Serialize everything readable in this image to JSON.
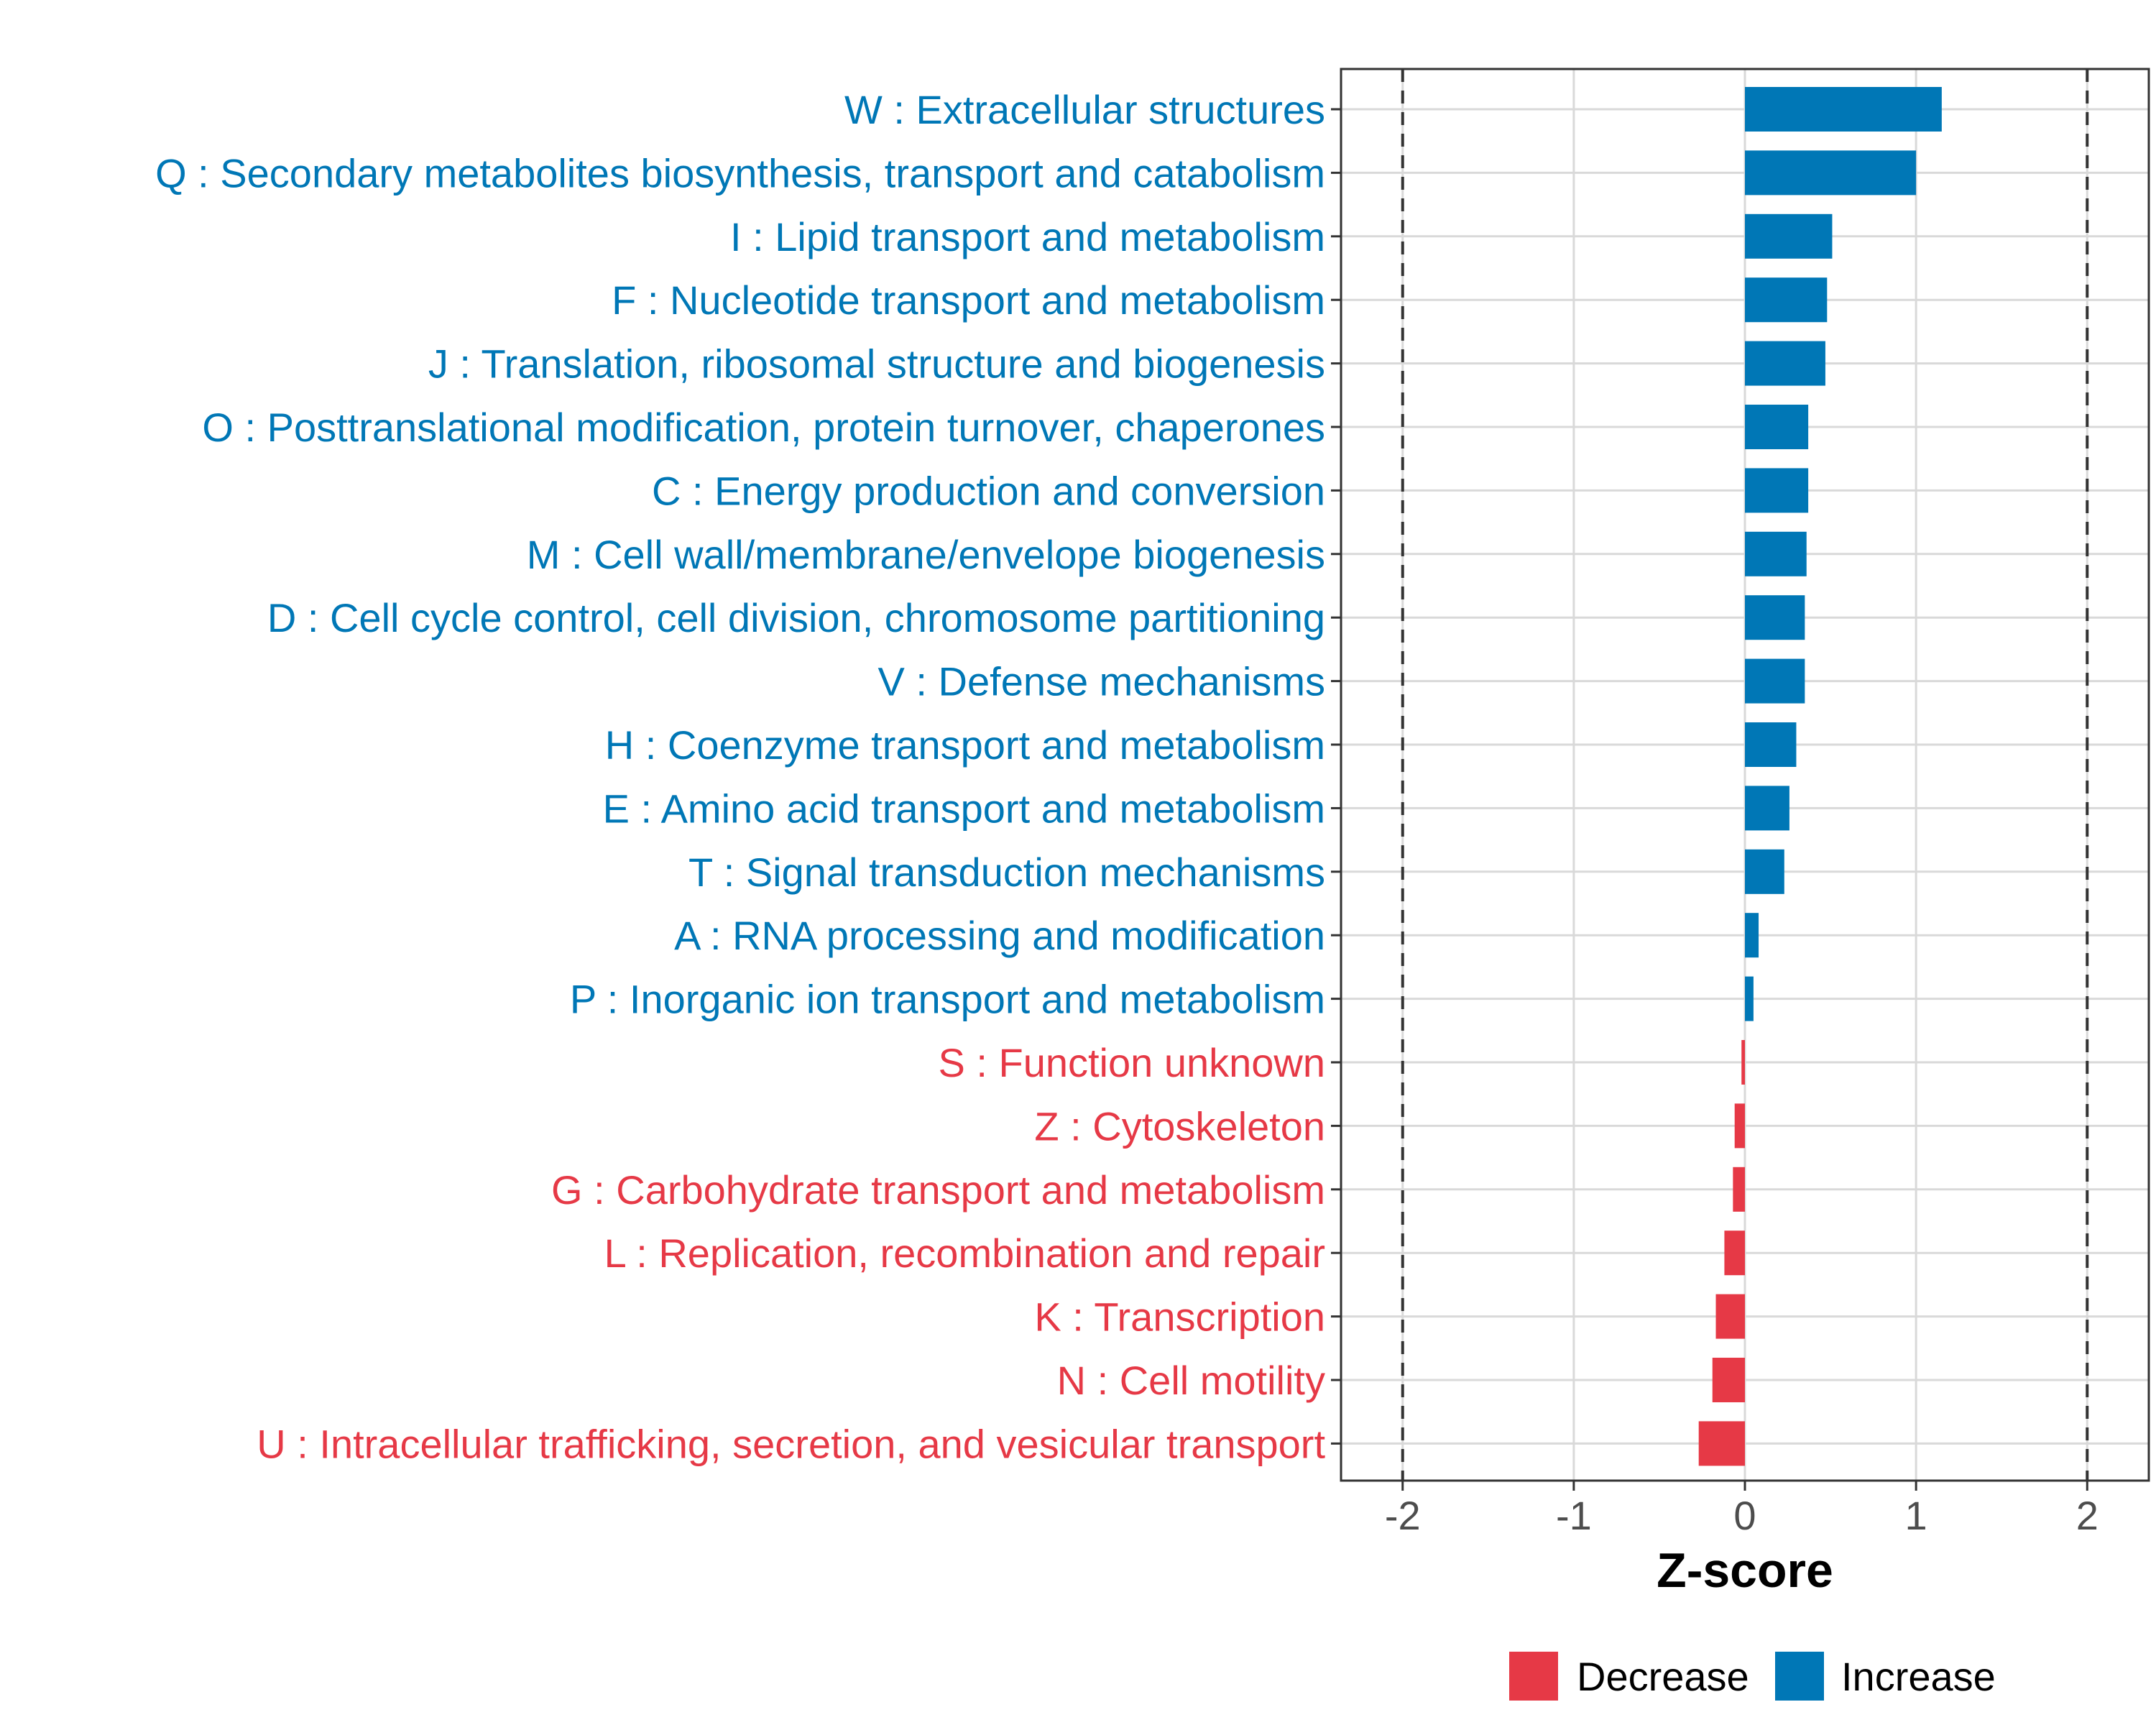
{
  "chart_data": {
    "type": "bar",
    "orientation": "horizontal",
    "title": "",
    "xlabel": "Z-score",
    "ylabel": "",
    "xlim": [
      -2.36,
      2.36
    ],
    "xticks": [
      -2,
      -1,
      0,
      1,
      2
    ],
    "xtick_labels": [
      "-2",
      "-1",
      "0",
      "1",
      "2"
    ],
    "reference_lines": [
      -2,
      2
    ],
    "grid": true,
    "categories": [
      "W : Extracellular structures",
      "Q : Secondary metabolites biosynthesis, transport and catabolism",
      "I : Lipid transport and metabolism",
      "F : Nucleotide transport and metabolism",
      "J : Translation, ribosomal structure and biogenesis",
      "O : Posttranslational modification, protein turnover, chaperones",
      "C : Energy production and conversion",
      "M : Cell wall/membrane/envelope biogenesis",
      "D : Cell cycle control, cell division, chromosome partitioning",
      "V : Defense mechanisms",
      "H : Coenzyme transport and metabolism",
      "E : Amino acid transport and metabolism",
      "T : Signal transduction mechanisms",
      "A : RNA processing and modification",
      "P : Inorganic ion transport and metabolism",
      "S : Function unknown",
      "Z : Cytoskeleton",
      "G : Carbohydrate transport and metabolism",
      "L : Replication, recombination and repair",
      "K : Transcription",
      "N : Cell motility",
      "U : Intracellular trafficking, secretion, and vesicular transport"
    ],
    "values": [
      1.15,
      1.0,
      0.51,
      0.48,
      0.47,
      0.37,
      0.37,
      0.36,
      0.35,
      0.35,
      0.3,
      0.26,
      0.23,
      0.08,
      0.05,
      -0.02,
      -0.06,
      -0.07,
      -0.12,
      -0.17,
      -0.19,
      -0.27
    ],
    "groups": [
      "Increase",
      "Increase",
      "Increase",
      "Increase",
      "Increase",
      "Increase",
      "Increase",
      "Increase",
      "Increase",
      "Increase",
      "Increase",
      "Increase",
      "Increase",
      "Increase",
      "Increase",
      "Decrease",
      "Decrease",
      "Decrease",
      "Decrease",
      "Decrease",
      "Decrease",
      "Decrease"
    ],
    "legend": {
      "position": "bottom",
      "items": [
        {
          "label": "Decrease",
          "color": "#E63946"
        },
        {
          "label": "Increase",
          "color": "#0077B6"
        }
      ]
    },
    "colors": {
      "Increase": "#0077B6",
      "Decrease": "#E63946",
      "grid": "#d9d9d9",
      "refline": "#333333",
      "panel_border": "#333333",
      "tick_text": "#4d4d4d"
    }
  }
}
